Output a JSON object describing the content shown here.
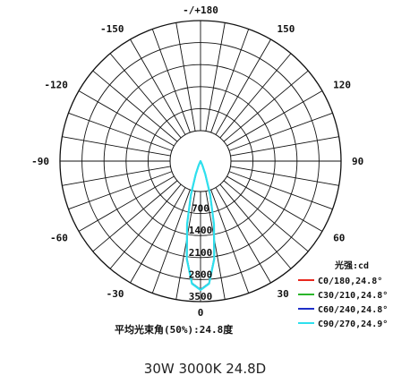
{
  "chart_data": {
    "type": "polar",
    "radial_unit_label": "光强:cd",
    "radial_ticks": [
      700,
      1400,
      2100,
      2800,
      3500
    ],
    "radial_max": 3500,
    "angle_tick_labels": [
      {
        "angle": 0,
        "label": "0"
      },
      {
        "angle": 30,
        "label": "30"
      },
      {
        "angle": -30,
        "label": "-30"
      },
      {
        "angle": 60,
        "label": "60"
      },
      {
        "angle": -60,
        "label": "-60"
      },
      {
        "angle": 90,
        "label": "90"
      },
      {
        "angle": -90,
        "label": "-90"
      },
      {
        "angle": 120,
        "label": "120"
      },
      {
        "angle": -120,
        "label": "-120"
      },
      {
        "angle": 150,
        "label": "150"
      },
      {
        "angle": -150,
        "label": "-150"
      },
      {
        "angle": 180,
        "label": "-/+180"
      }
    ],
    "series": [
      {
        "name": "C0/180,24.8°",
        "color": "#e8281e",
        "angles": [
          -24,
          -20,
          -16,
          -12,
          -8,
          -4,
          0,
          4,
          8,
          12,
          16,
          20,
          24
        ],
        "values": [
          110,
          340,
          860,
          1600,
          2450,
          3050,
          3200,
          3050,
          2450,
          1600,
          860,
          340,
          110
        ]
      },
      {
        "name": "C30/210,24.8°",
        "color": "#2bb52b",
        "angles": [
          -24,
          -20,
          -16,
          -12,
          -8,
          -4,
          0,
          4,
          8,
          12,
          16,
          20,
          24
        ],
        "values": [
          110,
          340,
          860,
          1600,
          2450,
          3050,
          3200,
          3050,
          2450,
          1600,
          860,
          340,
          110
        ]
      },
      {
        "name": "C60/240,24.8°",
        "color": "#1e2fc8",
        "angles": [
          -24,
          -20,
          -16,
          -12,
          -8,
          -4,
          0,
          4,
          8,
          12,
          16,
          20,
          24
        ],
        "values": [
          110,
          340,
          860,
          1600,
          2450,
          3050,
          3200,
          3050,
          2450,
          1600,
          860,
          340,
          110
        ]
      },
      {
        "name": "C90/270,24.9°",
        "color": "#2ee0ee",
        "angles": [
          -24,
          -20,
          -16,
          -12,
          -8,
          -4,
          0,
          4,
          8,
          12,
          16,
          20,
          24
        ],
        "values": [
          115,
          350,
          870,
          1610,
          2460,
          3060,
          3210,
          3060,
          2460,
          1610,
          870,
          350,
          115
        ]
      }
    ],
    "beam_angle_note": "平均光束角(50%):24.8度",
    "grid": true,
    "legend_position": "bottom-right"
  },
  "caption": "30W 3000K 24.8D"
}
